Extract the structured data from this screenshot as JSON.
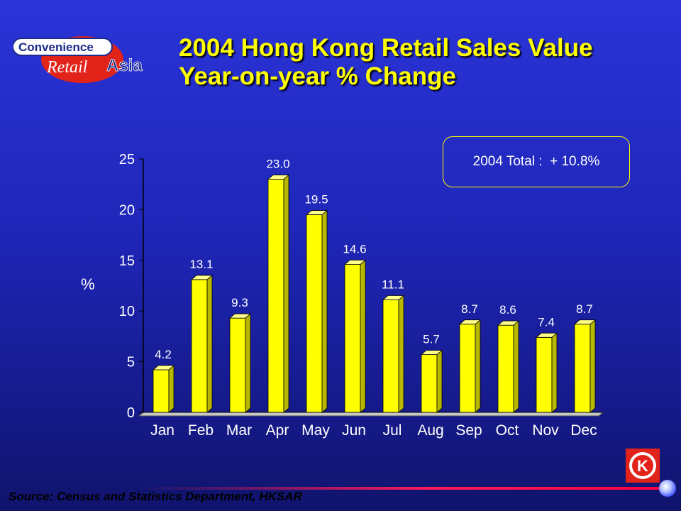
{
  "header": {
    "logo": {
      "line1": "Convenience",
      "line2a": "Retail",
      "line2b": "Asia"
    },
    "title_line1": "2004 Hong Kong Retail Sales Value",
    "title_line2": "Year-on-year % Change"
  },
  "callout": {
    "text": "2004 Total :  + 10.8%"
  },
  "chart_data": {
    "type": "bar",
    "title": "2004 Hong Kong Retail Sales Value Year-on-year % Change",
    "xlabel": "",
    "ylabel": "%",
    "categories": [
      "Jan",
      "Feb",
      "Mar",
      "Apr",
      "May",
      "Jun",
      "Jul",
      "Aug",
      "Sep",
      "Oct",
      "Nov",
      "Dec"
    ],
    "values": [
      4.2,
      13.1,
      9.3,
      23.0,
      19.5,
      14.6,
      11.1,
      5.7,
      8.7,
      8.6,
      7.4,
      8.7
    ],
    "value_labels": [
      "4.2",
      "13.1",
      "9.3",
      "23.0",
      "19.5",
      "14.6",
      "11.1",
      "5.7",
      "8.7",
      "8.6",
      "7.4",
      "8.7"
    ],
    "yticks": [
      0,
      5,
      10,
      15,
      20,
      25
    ],
    "ylim": [
      0,
      25
    ],
    "grid": false,
    "bar_color": "#ffff00"
  },
  "footer": {
    "source": "Source:  Census and Statistics Department, HKSAR",
    "brand_icon": "circle-k-icon",
    "brand_letter": "K"
  }
}
